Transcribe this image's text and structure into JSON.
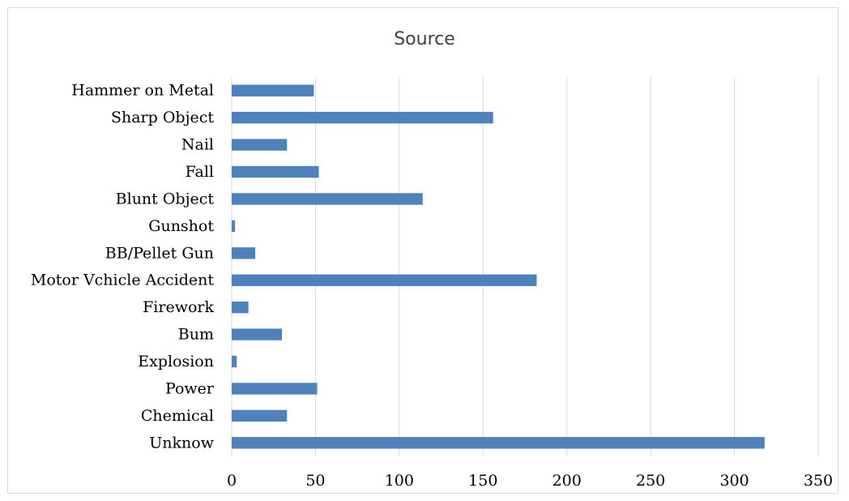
{
  "chart_data": {
    "type": "bar",
    "orientation": "horizontal",
    "title": "Source",
    "xlabel": "",
    "ylabel": "",
    "categories": [
      "Hammer on Metal",
      "Sharp Object",
      "Nail",
      "Fall",
      "Blunt Object",
      "Gunshot",
      "BB/Pellet Gun",
      "Motor Vchicle Accident",
      "Firework",
      "Bum",
      "Explosion",
      "Power",
      "Chemical",
      "Unknow"
    ],
    "values": [
      49,
      156,
      33,
      52,
      114,
      2,
      14,
      182,
      10,
      30,
      3,
      51,
      33,
      318
    ],
    "xlim": [
      0,
      350
    ],
    "xticks": [
      "0",
      "50",
      "100",
      "150",
      "200",
      "250",
      "300",
      "350"
    ],
    "grid": "vertical",
    "legend": "none",
    "bar_color": "#4f81bd",
    "grid_color": "#d9d9d9"
  }
}
